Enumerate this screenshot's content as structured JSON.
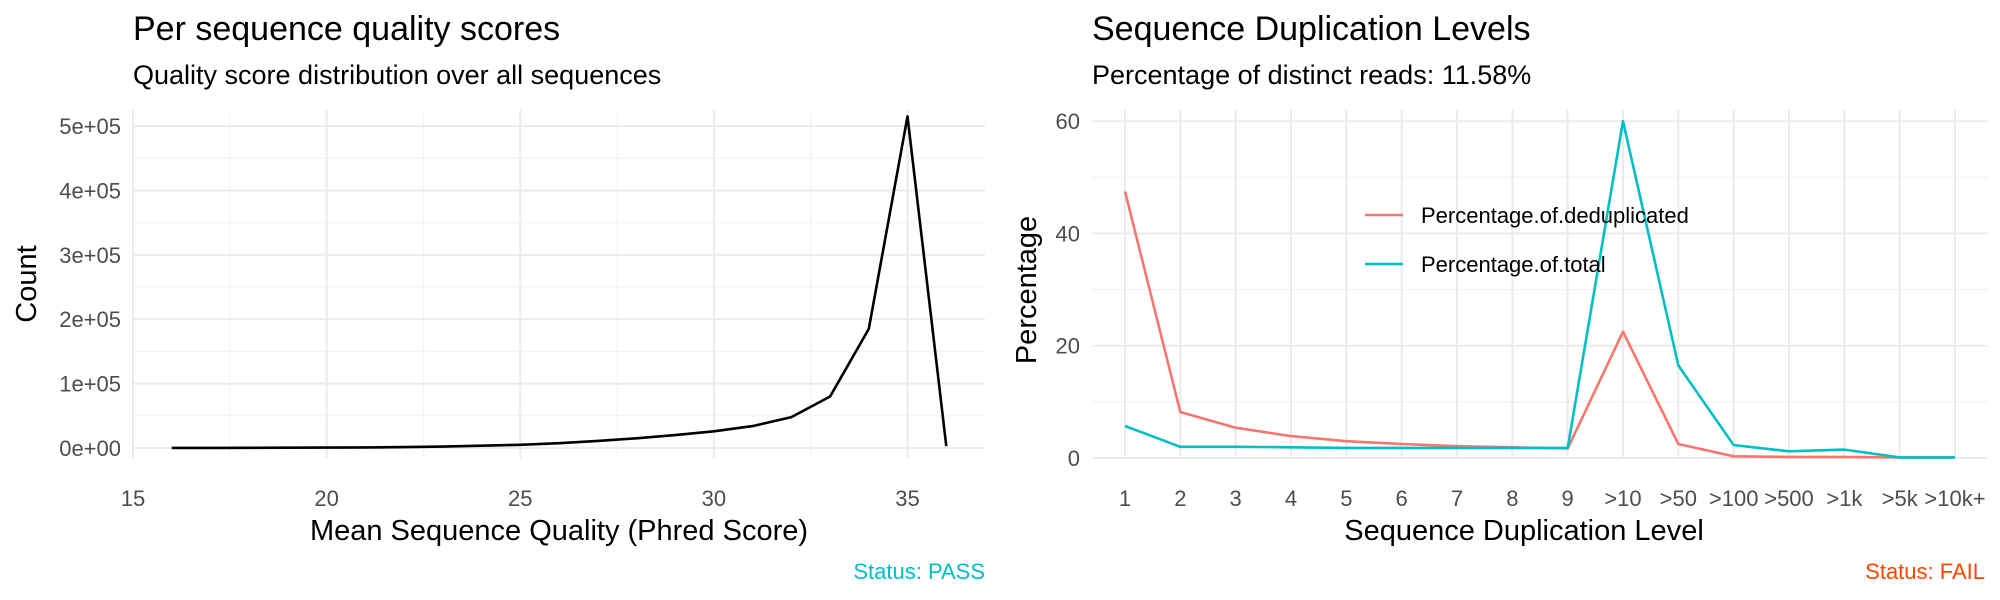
{
  "chart_data": [
    {
      "type": "line",
      "title": "Per sequence quality scores",
      "subtitle": "Quality score distribution over all sequences",
      "xlabel": "Mean Sequence Quality (Phred Score)",
      "ylabel": "Count",
      "xlim": [
        15,
        37
      ],
      "ylim": [
        0,
        525000
      ],
      "x_ticks": [
        15,
        20,
        25,
        30,
        35
      ],
      "x_tick_labels": [
        "15",
        "20",
        "25",
        "30",
        "35"
      ],
      "y_ticks": [
        0,
        100000,
        200000,
        300000,
        400000,
        500000
      ],
      "y_tick_labels": [
        "0e+00",
        "1e+05",
        "2e+05",
        "3e+05",
        "4e+05",
        "5e+05"
      ],
      "grid": true,
      "line_color": "#000000",
      "series": [
        {
          "x": [
            16,
            17,
            18,
            19,
            20,
            21,
            22,
            23,
            24,
            25,
            26,
            27,
            28,
            29,
            30,
            31,
            32,
            33,
            34,
            35,
            36
          ],
          "values": [
            100,
            150,
            250,
            400,
            600,
            900,
            1400,
            2200,
            3500,
            5000,
            7500,
            11000,
            15000,
            20000,
            26000,
            34000,
            48000,
            80000,
            185000,
            515000,
            3000
          ]
        }
      ],
      "status": "Status: PASS",
      "status_color": "#00BFC4"
    },
    {
      "type": "line",
      "title": "Sequence Duplication Levels",
      "subtitle": "Percentage of distinct reads: 11.58%",
      "xlabel": "Sequence Duplication Level",
      "ylabel": "Percentage",
      "ylim": [
        0,
        62
      ],
      "y_ticks": [
        0,
        20,
        40,
        60
      ],
      "y_tick_labels": [
        "0",
        "20",
        "40",
        "60"
      ],
      "categories": [
        "1",
        "2",
        "3",
        "4",
        "5",
        "6",
        "7",
        "8",
        "9",
        ">10",
        ">50",
        ">100",
        ">500",
        ">1k",
        ">5k",
        ">10k+"
      ],
      "grid": true,
      "legend_position": "inside-center",
      "series": [
        {
          "name": "Percentage.of.deduplicated",
          "color": "#F8766D",
          "values": [
            47.5,
            8.2,
            5.4,
            3.9,
            3.0,
            2.5,
            2.1,
            1.9,
            1.7,
            22.5,
            2.5,
            0.3,
            0.2,
            0.2,
            0.1,
            0.1
          ]
        },
        {
          "name": "Percentage.of.total",
          "color": "#00BFC4",
          "values": [
            5.7,
            2.0,
            2.0,
            1.9,
            1.8,
            1.8,
            1.8,
            1.8,
            1.8,
            60.0,
            16.5,
            2.3,
            1.2,
            1.5,
            0.1,
            0.1
          ]
        }
      ],
      "status": "Status: FAIL",
      "status_color": "#FF4500"
    }
  ]
}
